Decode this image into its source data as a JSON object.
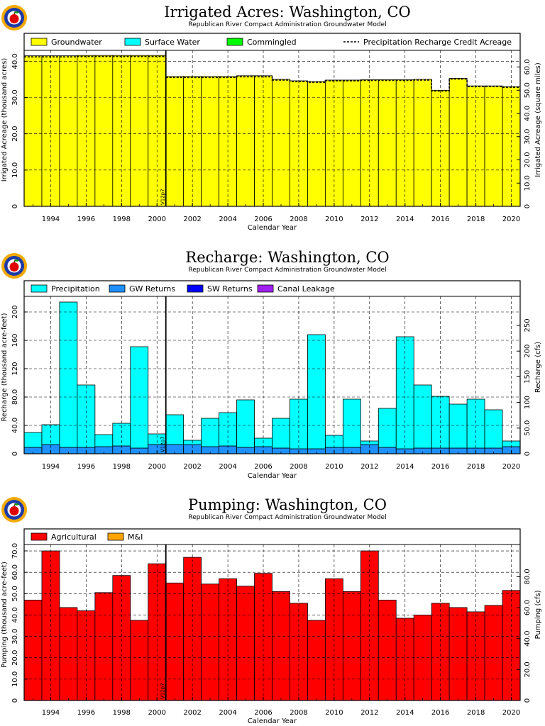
{
  "chart_data": [
    {
      "type": "bar",
      "title": "Irrigated Acres: Washington, CO",
      "subtitle": "Republican River Compact Administration Groundwater Model",
      "xlabel": "Calendar Year",
      "ylabel": "Irrigated Acreage (thousand acres)",
      "y2label": "Irrigated Acreage (square miles)",
      "xlim": [
        1992.5,
        2020.5
      ],
      "ylim": [
        0,
        43
      ],
      "y2lim": [
        0,
        67.19
      ],
      "x_ticks": [
        1994,
        1996,
        1998,
        2000,
        2002,
        2004,
        2006,
        2008,
        2010,
        2012,
        2014,
        2016,
        2018,
        2020
      ],
      "x_tick_labels": [
        "1994",
        "1996",
        "1998",
        "2000",
        "2002",
        "2004",
        "2006",
        "2008",
        "2010",
        "2012",
        "2014",
        "2016",
        "2018",
        "2020"
      ],
      "y_ticks": [
        0,
        10,
        20,
        30,
        40
      ],
      "y_tick_labels": [
        "0",
        "10.0",
        "20.0",
        "30.0",
        "40.0"
      ],
      "y2_ticks": [
        0,
        10,
        20,
        30,
        40,
        50,
        60
      ],
      "y2_tick_labels": [
        "0",
        "10.0",
        "20.0",
        "30.0",
        "40.0",
        "50.0",
        "60.0"
      ],
      "marker": {
        "x": 2000.5,
        "label": "V12p7"
      },
      "legend": [
        {
          "label": "Groundwater",
          "color": "#ffff00"
        },
        {
          "label": "Surface Water",
          "color": "#00ffff"
        },
        {
          "label": "Commingled",
          "color": "#00ff00"
        },
        {
          "label": "Precipitation Recharge Credit Acreage",
          "style": "dashed-line"
        }
      ],
      "x": [
        1993,
        1994,
        1995,
        1996,
        1997,
        1998,
        1999,
        2000,
        2001,
        2002,
        2003,
        2004,
        2005,
        2006,
        2007,
        2008,
        2009,
        2010,
        2011,
        2012,
        2013,
        2014,
        2015,
        2016,
        2017,
        2018,
        2019,
        2020
      ],
      "series": [
        {
          "name": "Groundwater",
          "color": "#ffff00",
          "values": [
            41.5,
            41.5,
            41.5,
            41.6,
            41.6,
            41.6,
            41.6,
            41.6,
            35.8,
            35.8,
            35.8,
            35.8,
            36.0,
            36.0,
            35.0,
            34.6,
            34.4,
            34.8,
            34.8,
            34.9,
            34.9,
            34.9,
            35.0,
            32.0,
            35.3,
            33.2,
            33.2,
            33.0
          ]
        },
        {
          "name": "Precipitation Recharge Credit Acreage",
          "line": "dashed",
          "values": [
            41.2,
            41.2,
            41.2,
            41.3,
            41.3,
            41.3,
            41.3,
            41.3,
            35.5,
            35.5,
            35.5,
            35.5,
            35.7,
            35.7,
            34.8,
            34.4,
            34.2,
            34.6,
            34.6,
            34.7,
            34.7,
            34.7,
            34.8,
            31.8,
            35.1,
            33.0,
            33.0,
            32.8
          ]
        }
      ],
      "grid": true
    },
    {
      "type": "bar",
      "title": "Recharge: Washington, CO",
      "subtitle": "Republican River Compact Administration Groundwater Model",
      "xlabel": "Calendar Year",
      "ylabel": "Recharge (thousand acre-feet)",
      "y2label": "Recharge (cfs)",
      "xlim": [
        1992.5,
        2020.5
      ],
      "ylim": [
        0,
        222
      ],
      "y2lim": [
        0,
        306.6
      ],
      "x_ticks": [
        1994,
        1996,
        1998,
        2000,
        2002,
        2004,
        2006,
        2008,
        2010,
        2012,
        2014,
        2016,
        2018,
        2020
      ],
      "x_tick_labels": [
        "1994",
        "1996",
        "1998",
        "2000",
        "2002",
        "2004",
        "2006",
        "2008",
        "2010",
        "2012",
        "2014",
        "2016",
        "2018",
        "2020"
      ],
      "y_ticks": [
        0,
        40,
        80,
        120,
        160,
        200
      ],
      "y_tick_labels": [
        "0",
        "40.0",
        "80.0",
        "120",
        "160",
        "200"
      ],
      "y2_ticks": [
        0,
        50,
        100,
        150,
        200,
        250
      ],
      "y2_tick_labels": [
        "0",
        "50.0",
        "100",
        "150",
        "200",
        "250"
      ],
      "marker": {
        "x": 2000.5,
        "label": "V12p7"
      },
      "legend": [
        {
          "label": "Precipitation",
          "color": "#00ffff"
        },
        {
          "label": "GW Returns",
          "color": "#1e90ff"
        },
        {
          "label": "SW Returns",
          "color": "#0000ff"
        },
        {
          "label": "Canal Leakage",
          "color": "#a020f0"
        }
      ],
      "x": [
        1993,
        1994,
        1995,
        1996,
        1997,
        1998,
        1999,
        2000,
        2001,
        2002,
        2003,
        2004,
        2005,
        2006,
        2007,
        2008,
        2009,
        2010,
        2011,
        2012,
        2013,
        2014,
        2015,
        2016,
        2017,
        2018,
        2019,
        2020
      ],
      "series": [
        {
          "name": "GW Returns",
          "color": "#1e90ff",
          "values": [
            9,
            13,
            9,
            9,
            10,
            11,
            8,
            13,
            13,
            13,
            10,
            11,
            9,
            10,
            8,
            7,
            7,
            9,
            9,
            13,
            9,
            7,
            8,
            8,
            8,
            8,
            8,
            10
          ]
        },
        {
          "name": "Precipitation",
          "color": "#00ffff",
          "values": [
            21,
            28,
            205,
            88,
            17,
            32,
            143,
            15,
            42,
            6,
            40,
            47,
            67,
            12,
            42,
            70,
            161,
            17,
            68,
            5,
            55,
            158,
            89,
            73,
            62,
            69,
            54,
            8
          ]
        }
      ],
      "grid": true
    },
    {
      "type": "bar",
      "title": "Pumping: Washington, CO",
      "subtitle": "Republican River Compact Administration Groundwater Model",
      "xlabel": "Calendar Year",
      "ylabel": "Pumping (thousand acre-feet)",
      "y2label": "Pumping (cfs)",
      "xlim": [
        1992.5,
        2020.5
      ],
      "ylim": [
        0,
        73
      ],
      "y2lim": [
        0,
        100.8
      ],
      "x_ticks": [
        1994,
        1996,
        1998,
        2000,
        2002,
        2004,
        2006,
        2008,
        2010,
        2012,
        2014,
        2016,
        2018,
        2020
      ],
      "x_tick_labels": [
        "1994",
        "1996",
        "1998",
        "2000",
        "2002",
        "2004",
        "2006",
        "2008",
        "2010",
        "2012",
        "2014",
        "2016",
        "2018",
        "2020"
      ],
      "y_ticks": [
        0,
        10,
        20,
        30,
        40,
        50,
        60,
        70
      ],
      "y_tick_labels": [
        "0",
        "10.0",
        "20.0",
        "30.0",
        "40.0",
        "50.0",
        "60.0",
        "70.0"
      ],
      "y2_ticks": [
        0,
        20,
        40,
        60,
        80
      ],
      "y2_tick_labels": [
        "0",
        "20.0",
        "40.0",
        "60.0",
        "80.0"
      ],
      "marker": {
        "x": 2000.5,
        "label": "V12p7"
      },
      "legend": [
        {
          "label": "Agricultural",
          "color": "#ff0000"
        },
        {
          "label": "M&I",
          "color": "#ffa500"
        }
      ],
      "x": [
        1993,
        1994,
        1995,
        1996,
        1997,
        1998,
        1999,
        2000,
        2001,
        2002,
        2003,
        2004,
        2005,
        2006,
        2007,
        2008,
        2009,
        2010,
        2011,
        2012,
        2013,
        2014,
        2015,
        2016,
        2017,
        2018,
        2019,
        2020
      ],
      "series": [
        {
          "name": "Agricultural",
          "color": "#ff0000",
          "values": [
            47,
            70,
            43.5,
            42,
            50.5,
            58.5,
            37.5,
            64,
            55,
            67,
            54.5,
            57,
            53.5,
            59.5,
            51,
            45.5,
            37.5,
            57,
            51,
            70,
            47,
            38.5,
            40,
            45.5,
            43.5,
            41.5,
            44.5,
            51.5
          ]
        }
      ],
      "grid": true
    }
  ]
}
